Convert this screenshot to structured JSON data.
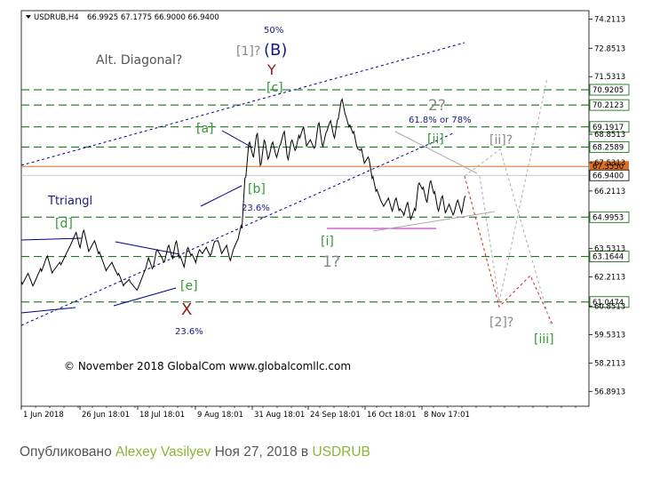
{
  "header": {
    "symbol": "USDRUB,H4",
    "ohlc": "66.9925 67.1775 66.9000 66.9400"
  },
  "colors": {
    "green_label": "#339933",
    "dark_red": "#8b1a1a",
    "navy": "#1a1a80",
    "gray_label": "#888888",
    "price_line": "#000000",
    "hline": "#006400",
    "channel": "#00008b",
    "orange_line": "#e07020",
    "magenta": "#cc44cc",
    "red_projection": "#cc2222",
    "gray_projection": "#aaaaaa",
    "highlight_label": "#4d7f2a",
    "caption_accent": "#8bb536"
  },
  "chart_data": {
    "type": "line",
    "title": "USDRUB,H4",
    "xlabel": "",
    "ylabel": "",
    "ylim": [
      56.2,
      74.6
    ],
    "y_ticks": [
      "74.2113",
      "72.8513",
      "71.5313",
      "70.9205",
      "70.2123",
      "69.1917",
      "68.8513",
      "68.2589",
      "67.5313",
      "67.3550",
      "66.9400",
      "66.2113",
      "64.9953",
      "63.5313",
      "63.1644",
      "62.2113",
      "61.0474",
      "60.8513",
      "59.5313",
      "58.2113",
      "56.8913"
    ],
    "x_ticks": [
      "1 Jun 2018",
      "26 Jun 18:01",
      "18 Jul 18:01",
      "9 Aug 18:01",
      "31 Aug 18:01",
      "24 Sep 18:01",
      "16 Oct 18:01",
      "8 Nov 17:01"
    ],
    "horizontal_levels": [
      {
        "label": "70.9205",
        "value": 70.9205
      },
      {
        "label": "70.2123",
        "value": 70.2123
      },
      {
        "label": "69.1917",
        "value": 69.1917
      },
      {
        "label": "68.2589",
        "value": 68.2589
      },
      {
        "label": "64.9953",
        "value": 64.9953
      },
      {
        "label": "63.1644",
        "value": 63.1644
      },
      {
        "label": "61.0474",
        "value": 61.0474
      }
    ],
    "orange_level": {
      "label": "67.3550",
      "value": 67.355
    },
    "current_price": {
      "label": "66.9400",
      "value": 66.94
    },
    "series": [
      {
        "x": [
          0,
          3,
          6,
          10,
          13,
          16,
          20,
          25,
          28,
          30,
          32,
          35,
          38,
          40,
          44,
          47,
          50,
          53,
          56,
          60,
          64,
          66,
          68,
          70,
          73,
          74,
          76,
          78,
          80,
          82,
          84,
          86,
          88,
          90,
          92,
          94,
          96,
          98,
          100,
          102,
          104,
          106,
          108,
          110,
          112,
          114,
          116,
          118,
          120,
          122,
          124,
          126,
          128,
          130,
          132,
          134,
          136,
          138,
          140,
          142,
          144,
          146,
          148,
          150,
          152,
          154,
          156,
          158,
          160,
          162,
          164,
          166,
          168,
          170,
          172,
          174,
          176,
          178,
          180,
          182,
          184,
          186,
          188,
          190,
          192,
          194,
          196,
          198,
          200,
          202,
          204,
          206,
          208,
          210,
          212,
          214,
          216,
          218,
          220,
          222,
          224,
          226,
          228,
          230
        ],
        "y": [
          62.0,
          62.3,
          61.8,
          62.6,
          63.1,
          62.4,
          62.9,
          63.6,
          64.2,
          63.7,
          64.3,
          63.4,
          63.9,
          63.3,
          62.5,
          62.9,
          62.3,
          61.8,
          62.1,
          61.6,
          62.5,
          63.1,
          62.6,
          63.4,
          63.1,
          62.9,
          63.6,
          63.2,
          63.8,
          63.1,
          62.8,
          63.5,
          63.2,
          63.0,
          63.4,
          63.3,
          63.6,
          63.2,
          63.8,
          63.9,
          63.3,
          63.6,
          63.1,
          63.5,
          63.9,
          64.6,
          66.8,
          68.4,
          67.9,
          68.8,
          67.4,
          68.6,
          67.7,
          68.4,
          67.9,
          68.3,
          68.9,
          67.8,
          68.5,
          68.1,
          68.8,
          69.1,
          68.3,
          68.6,
          68.2,
          69.3,
          68.4,
          68.9,
          69.4,
          68.8,
          69.5,
          70.4,
          69.8,
          69.2,
          68.9,
          68.3,
          68.1,
          67.5,
          67.8,
          66.8,
          66.2,
          65.9,
          65.5,
          65.8,
          65.4,
          65.8,
          65.3,
          65.2,
          65.6,
          64.9,
          65.4,
          66.5,
          66.3,
          65.8,
          66.6,
          66.1,
          65.4,
          65.9,
          65.2,
          65.6,
          65.1,
          65.7,
          65.3,
          65.9
        ],
        "note": "wave structure (relative time index, not axis data)"
      }
    ],
    "annotations": [
      "Alt. Diagonal?",
      "Ttriangl",
      "[1]?",
      "(B)",
      "Y",
      "50%",
      "[c]",
      "[a]",
      "[b]",
      "23.6%",
      "[d]",
      "[e]",
      "X",
      "23.6%",
      "2?",
      "61.8% or 78%",
      "[ii]",
      "[ii]?",
      "[i]",
      "1?",
      "[2]?",
      "[iii]"
    ],
    "copyright": "© November 2018 GlobalCom www.globalcomllc.com"
  },
  "caption": {
    "prefix": "Опубликовано ",
    "author": "Alexey Vasilyev",
    "middle": " Ноя 27, 2018 в ",
    "symbol": "USDRUB"
  }
}
